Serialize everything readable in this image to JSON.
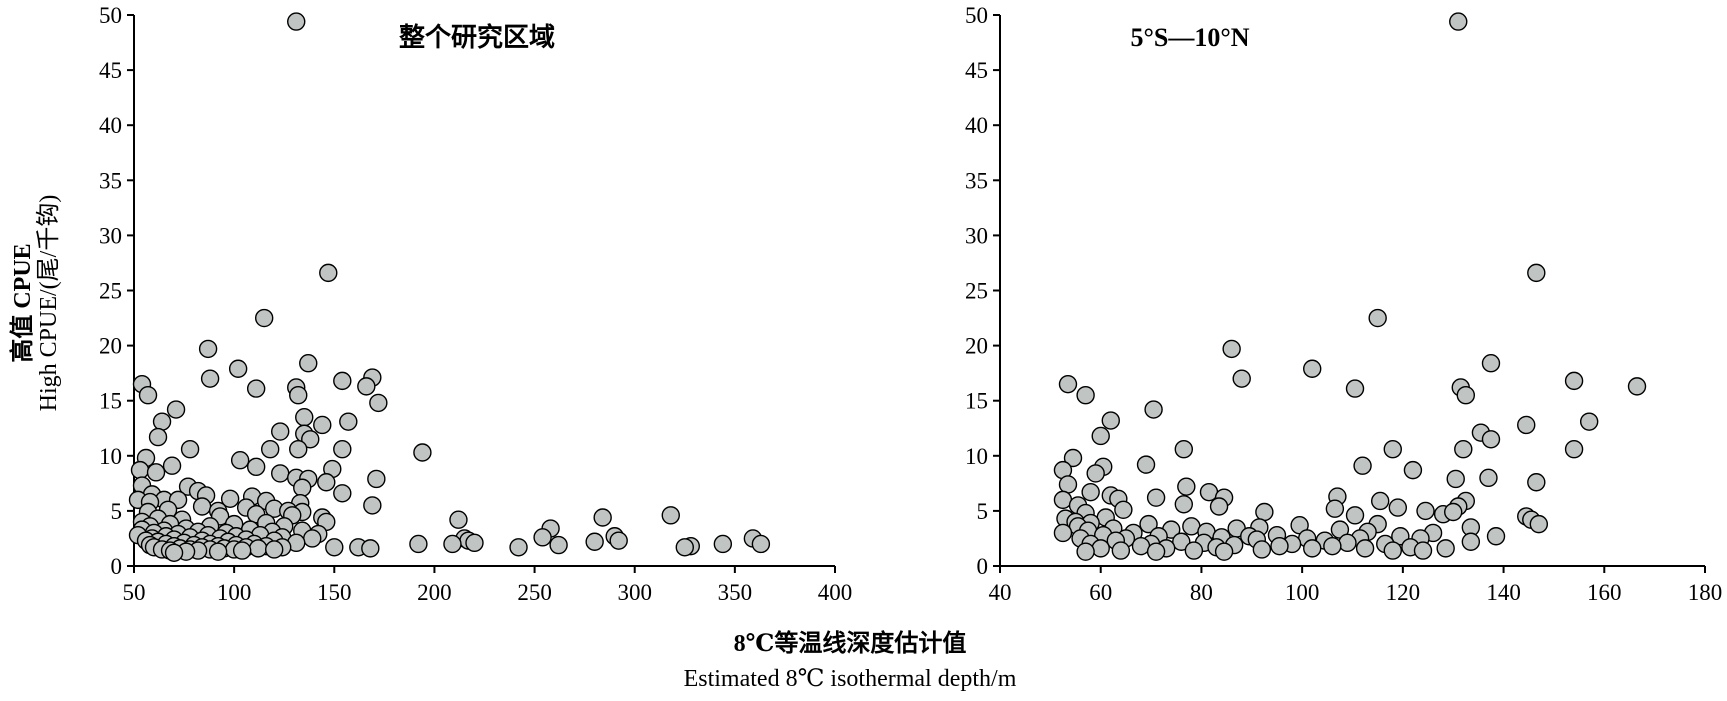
{
  "ylabel_cn": "高值 CPUE",
  "ylabel_en": "High CPUE/(尾/千钩)",
  "xlabel_cn": "8℃等温线深度估计值",
  "xlabel_en": "Estimated 8℃ isothermal depth/m",
  "chart_data": [
    {
      "type": "scatter",
      "title": "整个研究区域",
      "xlim": [
        50,
        400
      ],
      "ylim": [
        0,
        50
      ],
      "xticks": [
        50,
        100,
        150,
        200,
        250,
        300,
        350,
        400
      ],
      "yticks": [
        0,
        5,
        10,
        15,
        20,
        25,
        30,
        35,
        40,
        45,
        50
      ],
      "x_tick_labels": [
        "50",
        "100",
        "150",
        "200",
        "250",
        "300",
        "350",
        "400"
      ],
      "y_tick_labels": [
        "0",
        "5",
        "10",
        "15",
        "20",
        "25",
        "30",
        "35",
        "40",
        "45",
        "50"
      ],
      "grid": false,
      "points": [
        {
          "x": 131,
          "y": 49.4
        },
        {
          "x": 147,
          "y": 26.6
        },
        {
          "x": 115,
          "y": 22.5
        },
        {
          "x": 87,
          "y": 19.7
        },
        {
          "x": 137,
          "y": 18.4
        },
        {
          "x": 102,
          "y": 17.9
        },
        {
          "x": 169,
          "y": 17.1
        },
        {
          "x": 88,
          "y": 17.0
        },
        {
          "x": 154,
          "y": 16.8
        },
        {
          "x": 54,
          "y": 16.5
        },
        {
          "x": 166,
          "y": 16.3
        },
        {
          "x": 131,
          "y": 16.2
        },
        {
          "x": 111,
          "y": 16.1
        },
        {
          "x": 57,
          "y": 15.5
        },
        {
          "x": 132,
          "y": 15.5
        },
        {
          "x": 172,
          "y": 14.8
        },
        {
          "x": 71,
          "y": 14.2
        },
        {
          "x": 135,
          "y": 13.5
        },
        {
          "x": 64,
          "y": 13.1
        },
        {
          "x": 157,
          "y": 13.1
        },
        {
          "x": 144,
          "y": 12.8
        },
        {
          "x": 123,
          "y": 12.2
        },
        {
          "x": 135,
          "y": 12.0
        },
        {
          "x": 62,
          "y": 11.7
        },
        {
          "x": 138,
          "y": 11.5
        },
        {
          "x": 78,
          "y": 10.6
        },
        {
          "x": 118,
          "y": 10.6
        },
        {
          "x": 132,
          "y": 10.6
        },
        {
          "x": 154,
          "y": 10.6
        },
        {
          "x": 194,
          "y": 10.3
        },
        {
          "x": 56,
          "y": 9.8
        },
        {
          "x": 103,
          "y": 9.6
        },
        {
          "x": 69,
          "y": 9.1
        },
        {
          "x": 111,
          "y": 9.0
        },
        {
          "x": 149,
          "y": 8.8
        },
        {
          "x": 53,
          "y": 8.7
        },
        {
          "x": 61,
          "y": 8.5
        },
        {
          "x": 123,
          "y": 8.4
        },
        {
          "x": 131,
          "y": 8.0
        },
        {
          "x": 171,
          "y": 7.9
        },
        {
          "x": 137,
          "y": 7.9
        },
        {
          "x": 146,
          "y": 7.6
        },
        {
          "x": 54,
          "y": 7.3
        },
        {
          "x": 77,
          "y": 7.2
        },
        {
          "x": 134,
          "y": 7.1
        },
        {
          "x": 82,
          "y": 6.8
        },
        {
          "x": 154,
          "y": 6.6
        },
        {
          "x": 59,
          "y": 6.5
        },
        {
          "x": 86,
          "y": 6.4
        },
        {
          "x": 109,
          "y": 6.3
        },
        {
          "x": 98,
          "y": 6.1
        },
        {
          "x": 52,
          "y": 6.0
        },
        {
          "x": 65,
          "y": 6.0
        },
        {
          "x": 72,
          "y": 6.0
        },
        {
          "x": 116,
          "y": 5.9
        },
        {
          "x": 58,
          "y": 5.8
        },
        {
          "x": 133,
          "y": 5.7
        },
        {
          "x": 169,
          "y": 5.5
        },
        {
          "x": 84,
          "y": 5.4
        },
        {
          "x": 106,
          "y": 5.3
        },
        {
          "x": 120,
          "y": 5.2
        },
        {
          "x": 67,
          "y": 5.1
        },
        {
          "x": 92,
          "y": 5.0
        },
        {
          "x": 127,
          "y": 5.0
        },
        {
          "x": 57,
          "y": 4.9
        },
        {
          "x": 134,
          "y": 4.9
        },
        {
          "x": 111,
          "y": 4.7
        },
        {
          "x": 129,
          "y": 4.6
        },
        {
          "x": 318,
          "y": 4.6
        },
        {
          "x": 93,
          "y": 4.5
        },
        {
          "x": 144,
          "y": 4.4
        },
        {
          "x": 284,
          "y": 4.4
        },
        {
          "x": 62,
          "y": 4.3
        },
        {
          "x": 74,
          "y": 4.2
        },
        {
          "x": 212,
          "y": 4.2
        },
        {
          "x": 54,
          "y": 4.0
        },
        {
          "x": 146,
          "y": 4.0
        },
        {
          "x": 116,
          "y": 3.9
        },
        {
          "x": 68,
          "y": 3.8
        },
        {
          "x": 100,
          "y": 3.8
        },
        {
          "x": 58,
          "y": 3.6
        },
        {
          "x": 88,
          "y": 3.6
        },
        {
          "x": 125,
          "y": 3.6
        },
        {
          "x": 76,
          "y": 3.4
        },
        {
          "x": 258,
          "y": 3.4
        },
        {
          "x": 54,
          "y": 3.3
        },
        {
          "x": 108,
          "y": 3.3
        },
        {
          "x": 65,
          "y": 3.2
        },
        {
          "x": 134,
          "y": 3.2
        },
        {
          "x": 82,
          "y": 3.1
        },
        {
          "x": 119,
          "y": 3.1
        },
        {
          "x": 60,
          "y": 3.0
        },
        {
          "x": 96,
          "y": 3.0
        },
        {
          "x": 72,
          "y": 2.9
        },
        {
          "x": 142,
          "y": 2.9
        },
        {
          "x": 52,
          "y": 2.8
        },
        {
          "x": 87,
          "y": 2.8
        },
        {
          "x": 113,
          "y": 2.8
        },
        {
          "x": 66,
          "y": 2.7
        },
        {
          "x": 101,
          "y": 2.7
        },
        {
          "x": 290,
          "y": 2.7
        },
        {
          "x": 78,
          "y": 2.6
        },
        {
          "x": 124,
          "y": 2.6
        },
        {
          "x": 254,
          "y": 2.6
        },
        {
          "x": 59,
          "y": 2.5
        },
        {
          "x": 93,
          "y": 2.5
        },
        {
          "x": 139,
          "y": 2.5
        },
        {
          "x": 215,
          "y": 2.5
        },
        {
          "x": 359,
          "y": 2.5
        },
        {
          "x": 70,
          "y": 2.4
        },
        {
          "x": 106,
          "y": 2.4
        },
        {
          "x": 292,
          "y": 2.3
        },
        {
          "x": 56,
          "y": 2.3
        },
        {
          "x": 84,
          "y": 2.3
        },
        {
          "x": 120,
          "y": 2.3
        },
        {
          "x": 217,
          "y": 2.3
        },
        {
          "x": 62,
          "y": 2.2
        },
        {
          "x": 97,
          "y": 2.2
        },
        {
          "x": 280,
          "y": 2.2
        },
        {
          "x": 75,
          "y": 2.1
        },
        {
          "x": 131,
          "y": 2.1
        },
        {
          "x": 220,
          "y": 2.1
        },
        {
          "x": 66,
          "y": 2.0
        },
        {
          "x": 88,
          "y": 2.0
        },
        {
          "x": 110,
          "y": 2.0
        },
        {
          "x": 192,
          "y": 2.0
        },
        {
          "x": 209,
          "y": 2.0
        },
        {
          "x": 344,
          "y": 2.0
        },
        {
          "x": 363,
          "y": 2.0
        },
        {
          "x": 58,
          "y": 1.9
        },
        {
          "x": 80,
          "y": 1.9
        },
        {
          "x": 101,
          "y": 1.9
        },
        {
          "x": 262,
          "y": 1.9
        },
        {
          "x": 70,
          "y": 1.8
        },
        {
          "x": 92,
          "y": 1.8
        },
        {
          "x": 116,
          "y": 1.8
        },
        {
          "x": 328,
          "y": 1.8
        },
        {
          "x": 60,
          "y": 1.7
        },
        {
          "x": 84,
          "y": 1.7
        },
        {
          "x": 106,
          "y": 1.7
        },
        {
          "x": 124,
          "y": 1.7
        },
        {
          "x": 150,
          "y": 1.7
        },
        {
          "x": 162,
          "y": 1.7
        },
        {
          "x": 242,
          "y": 1.7
        },
        {
          "x": 325,
          "y": 1.7
        },
        {
          "x": 73,
          "y": 1.6
        },
        {
          "x": 95,
          "y": 1.6
        },
        {
          "x": 112,
          "y": 1.6
        },
        {
          "x": 168,
          "y": 1.6
        },
        {
          "x": 64,
          "y": 1.5
        },
        {
          "x": 78,
          "y": 1.5
        },
        {
          "x": 88,
          "y": 1.5
        },
        {
          "x": 100,
          "y": 1.5
        },
        {
          "x": 120,
          "y": 1.5
        },
        {
          "x": 68,
          "y": 1.4
        },
        {
          "x": 82,
          "y": 1.4
        },
        {
          "x": 104,
          "y": 1.4
        },
        {
          "x": 76,
          "y": 1.3
        },
        {
          "x": 92,
          "y": 1.3
        },
        {
          "x": 70,
          "y": 1.2
        }
      ]
    },
    {
      "type": "scatter",
      "title": "5°S—10°N",
      "xlim": [
        40,
        180
      ],
      "ylim": [
        0,
        50
      ],
      "xticks": [
        40,
        60,
        80,
        100,
        120,
        140,
        160,
        180
      ],
      "yticks": [
        0,
        5,
        10,
        15,
        20,
        25,
        30,
        35,
        40,
        45,
        50
      ],
      "x_tick_labels": [
        "40",
        "60",
        "80",
        "100",
        "120",
        "140",
        "160",
        "180"
      ],
      "y_tick_labels": [
        "0",
        "5",
        "10",
        "15",
        "20",
        "25",
        "30",
        "35",
        "40",
        "45",
        "50"
      ],
      "grid": false,
      "points": [
        {
          "x": 131,
          "y": 49.4
        },
        {
          "x": 146.5,
          "y": 26.6
        },
        {
          "x": 115,
          "y": 22.5
        },
        {
          "x": 86,
          "y": 19.7
        },
        {
          "x": 137.5,
          "y": 18.4
        },
        {
          "x": 102,
          "y": 17.9
        },
        {
          "x": 88,
          "y": 17.0
        },
        {
          "x": 154,
          "y": 16.8
        },
        {
          "x": 53.5,
          "y": 16.5
        },
        {
          "x": 166.5,
          "y": 16.3
        },
        {
          "x": 131.5,
          "y": 16.2
        },
        {
          "x": 110.5,
          "y": 16.1
        },
        {
          "x": 57,
          "y": 15.5
        },
        {
          "x": 132.5,
          "y": 15.5
        },
        {
          "x": 70.5,
          "y": 14.2
        },
        {
          "x": 62,
          "y": 13.2
        },
        {
          "x": 157,
          "y": 13.1
        },
        {
          "x": 144.5,
          "y": 12.8
        },
        {
          "x": 135.5,
          "y": 12.1
        },
        {
          "x": 60,
          "y": 11.8
        },
        {
          "x": 137.5,
          "y": 11.5
        },
        {
          "x": 76.5,
          "y": 10.6
        },
        {
          "x": 118,
          "y": 10.6
        },
        {
          "x": 132,
          "y": 10.6
        },
        {
          "x": 154,
          "y": 10.6
        },
        {
          "x": 54.5,
          "y": 9.8
        },
        {
          "x": 69,
          "y": 9.2
        },
        {
          "x": 112,
          "y": 9.1
        },
        {
          "x": 52.5,
          "y": 8.7
        },
        {
          "x": 60.5,
          "y": 9.0
        },
        {
          "x": 122,
          "y": 8.7
        },
        {
          "x": 59,
          "y": 8.4
        },
        {
          "x": 130.5,
          "y": 7.9
        },
        {
          "x": 137,
          "y": 8.0
        },
        {
          "x": 146.5,
          "y": 7.6
        },
        {
          "x": 53.5,
          "y": 7.4
        },
        {
          "x": 77,
          "y": 7.2
        },
        {
          "x": 58,
          "y": 6.7
        },
        {
          "x": 81.5,
          "y": 6.7
        },
        {
          "x": 62,
          "y": 6.4
        },
        {
          "x": 84.5,
          "y": 6.2
        },
        {
          "x": 71,
          "y": 6.2
        },
        {
          "x": 107,
          "y": 6.3
        },
        {
          "x": 63.5,
          "y": 6.1
        },
        {
          "x": 52.5,
          "y": 6.0
        },
        {
          "x": 115.5,
          "y": 5.9
        },
        {
          "x": 132.5,
          "y": 5.9
        },
        {
          "x": 76.5,
          "y": 5.6
        },
        {
          "x": 55.5,
          "y": 5.5
        },
        {
          "x": 83.5,
          "y": 5.4
        },
        {
          "x": 106.5,
          "y": 5.2
        },
        {
          "x": 119,
          "y": 5.3
        },
        {
          "x": 64.5,
          "y": 5.1
        },
        {
          "x": 131,
          "y": 5.4
        },
        {
          "x": 57,
          "y": 4.8
        },
        {
          "x": 92.5,
          "y": 4.9
        },
        {
          "x": 124.5,
          "y": 5.0
        },
        {
          "x": 110.5,
          "y": 4.6
        },
        {
          "x": 128,
          "y": 4.7
        },
        {
          "x": 130,
          "y": 4.9
        },
        {
          "x": 144.5,
          "y": 4.5
        },
        {
          "x": 53,
          "y": 4.3
        },
        {
          "x": 61,
          "y": 4.4
        },
        {
          "x": 145.5,
          "y": 4.2
        },
        {
          "x": 55,
          "y": 4.0
        },
        {
          "x": 147,
          "y": 3.8
        },
        {
          "x": 58,
          "y": 3.9
        },
        {
          "x": 69.5,
          "y": 3.8
        },
        {
          "x": 78,
          "y": 3.6
        },
        {
          "x": 99.5,
          "y": 3.7
        },
        {
          "x": 115,
          "y": 3.8
        },
        {
          "x": 55.5,
          "y": 3.6
        },
        {
          "x": 62.5,
          "y": 3.4
        },
        {
          "x": 87,
          "y": 3.4
        },
        {
          "x": 57.5,
          "y": 3.2
        },
        {
          "x": 74,
          "y": 3.3
        },
        {
          "x": 91.5,
          "y": 3.5
        },
        {
          "x": 133.5,
          "y": 3.5
        },
        {
          "x": 107.5,
          "y": 3.3
        },
        {
          "x": 113,
          "y": 3.1
        },
        {
          "x": 52.5,
          "y": 3.0
        },
        {
          "x": 66.5,
          "y": 3.0
        },
        {
          "x": 81,
          "y": 3.1
        },
        {
          "x": 126,
          "y": 3.0
        },
        {
          "x": 95,
          "y": 2.8
        },
        {
          "x": 60.5,
          "y": 2.8
        },
        {
          "x": 71.5,
          "y": 2.7
        },
        {
          "x": 89.5,
          "y": 2.7
        },
        {
          "x": 119.5,
          "y": 2.7
        },
        {
          "x": 138.5,
          "y": 2.7
        },
        {
          "x": 56,
          "y": 2.5
        },
        {
          "x": 65,
          "y": 2.5
        },
        {
          "x": 84,
          "y": 2.6
        },
        {
          "x": 101,
          "y": 2.5
        },
        {
          "x": 111.5,
          "y": 2.5
        },
        {
          "x": 123.5,
          "y": 2.5
        },
        {
          "x": 63,
          "y": 2.3
        },
        {
          "x": 76,
          "y": 2.2
        },
        {
          "x": 91,
          "y": 2.4
        },
        {
          "x": 104.5,
          "y": 2.3
        },
        {
          "x": 133.5,
          "y": 2.2
        },
        {
          "x": 58,
          "y": 2.0
        },
        {
          "x": 70,
          "y": 2.0
        },
        {
          "x": 80.5,
          "y": 2.1
        },
        {
          "x": 98,
          "y": 2.0
        },
        {
          "x": 109,
          "y": 2.1
        },
        {
          "x": 116.5,
          "y": 2.0
        },
        {
          "x": 68,
          "y": 1.8
        },
        {
          "x": 86.5,
          "y": 1.9
        },
        {
          "x": 95.5,
          "y": 1.8
        },
        {
          "x": 106,
          "y": 1.8
        },
        {
          "x": 121.5,
          "y": 1.7
        },
        {
          "x": 60,
          "y": 1.6
        },
        {
          "x": 73,
          "y": 1.6
        },
        {
          "x": 83,
          "y": 1.7
        },
        {
          "x": 102,
          "y": 1.6
        },
        {
          "x": 112.5,
          "y": 1.6
        },
        {
          "x": 128.5,
          "y": 1.6
        },
        {
          "x": 64,
          "y": 1.4
        },
        {
          "x": 78.5,
          "y": 1.4
        },
        {
          "x": 92,
          "y": 1.5
        },
        {
          "x": 118,
          "y": 1.4
        },
        {
          "x": 124,
          "y": 1.4
        },
        {
          "x": 57,
          "y": 1.3
        },
        {
          "x": 84.5,
          "y": 1.3
        },
        {
          "x": 71,
          "y": 1.3
        }
      ]
    }
  ]
}
